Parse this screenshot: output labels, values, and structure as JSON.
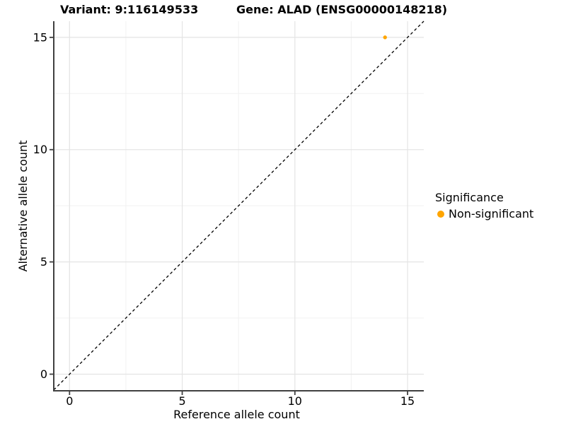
{
  "chart_data": {
    "type": "scatter",
    "title_left": "Variant: 9:116149533",
    "title_right": "Gene: ALAD (ENSG00000148218)",
    "xlabel": "Reference allele count",
    "ylabel": "Alternative allele count",
    "xlim": [
      -0.7,
      15.72
    ],
    "ylim": [
      -0.74,
      15.72
    ],
    "x_major_ticks": [
      0,
      5,
      10,
      15
    ],
    "y_major_ticks": [
      0,
      5,
      10,
      15
    ],
    "x_minor_gridlines": [
      2.5,
      7.5,
      12.5
    ],
    "y_minor_gridlines": [
      2.5,
      7.5,
      12.5
    ],
    "grid": "major+minor",
    "identity_line": {
      "style": "dashed",
      "color": "#000000",
      "note": "y = x reference line"
    },
    "series": [
      {
        "name": "Non-significant",
        "color": "#FFA500",
        "points": [
          {
            "x": 14,
            "y": 15
          }
        ]
      }
    ],
    "legend": {
      "position": "right",
      "title": "Significance",
      "items": [
        {
          "label": "Non-significant",
          "color": "#FFA500",
          "marker": "circle-icon"
        }
      ]
    },
    "colors": {
      "point": "#FFA500",
      "axis_line": "#404040",
      "tick": "#404040",
      "grid_major": "#e4e4e4",
      "grid_minor": "#f1f1f1",
      "text": "#000000",
      "background": "#ffffff"
    }
  }
}
